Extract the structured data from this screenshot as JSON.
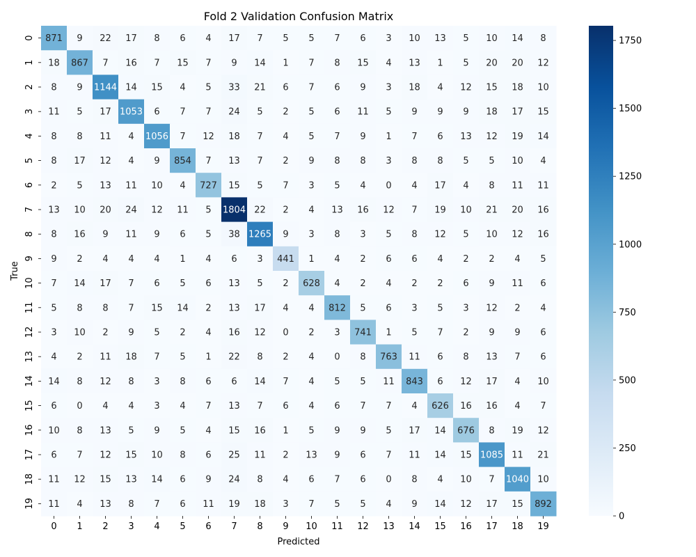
{
  "chart_data": {
    "type": "heatmap",
    "title": "Fold 2 Validation Confusion Matrix",
    "xlabel": "Predicted",
    "ylabel": "True",
    "x_labels": [
      "0",
      "1",
      "2",
      "3",
      "4",
      "5",
      "6",
      "7",
      "8",
      "9",
      "10",
      "11",
      "12",
      "13",
      "14",
      "15",
      "16",
      "17",
      "18",
      "19"
    ],
    "y_labels": [
      "0",
      "1",
      "2",
      "3",
      "4",
      "5",
      "6",
      "7",
      "8",
      "9",
      "10",
      "11",
      "12",
      "13",
      "14",
      "15",
      "16",
      "17",
      "18",
      "19"
    ],
    "values": [
      [
        871,
        9,
        22,
        17,
        8,
        6,
        4,
        17,
        7,
        5,
        5,
        7,
        6,
        3,
        10,
        13,
        5,
        10,
        14,
        8
      ],
      [
        18,
        867,
        7,
        16,
        7,
        15,
        7,
        9,
        14,
        1,
        7,
        8,
        15,
        4,
        13,
        1,
        5,
        20,
        20,
        12
      ],
      [
        8,
        9,
        1144,
        14,
        15,
        4,
        5,
        33,
        21,
        6,
        7,
        6,
        9,
        3,
        18,
        4,
        12,
        15,
        18,
        10
      ],
      [
        11,
        5,
        17,
        1053,
        6,
        7,
        7,
        24,
        5,
        2,
        5,
        6,
        11,
        5,
        9,
        9,
        9,
        18,
        17,
        15
      ],
      [
        8,
        8,
        11,
        4,
        1056,
        7,
        12,
        18,
        7,
        4,
        5,
        7,
        9,
        1,
        7,
        6,
        13,
        12,
        19,
        14
      ],
      [
        8,
        17,
        12,
        4,
        9,
        854,
        7,
        13,
        7,
        2,
        9,
        8,
        8,
        3,
        8,
        8,
        5,
        5,
        10,
        4
      ],
      [
        2,
        5,
        13,
        11,
        10,
        4,
        727,
        15,
        5,
        7,
        3,
        5,
        4,
        0,
        4,
        17,
        4,
        8,
        11,
        11
      ],
      [
        13,
        10,
        20,
        24,
        12,
        11,
        5,
        1804,
        22,
        2,
        4,
        13,
        16,
        12,
        7,
        19,
        10,
        21,
        20,
        16
      ],
      [
        8,
        16,
        9,
        11,
        9,
        6,
        5,
        38,
        1265,
        9,
        3,
        8,
        3,
        5,
        8,
        12,
        5,
        10,
        12,
        16
      ],
      [
        9,
        2,
        4,
        4,
        4,
        1,
        4,
        6,
        3,
        441,
        1,
        4,
        2,
        6,
        6,
        4,
        2,
        2,
        4,
        5
      ],
      [
        7,
        14,
        17,
        7,
        6,
        5,
        6,
        13,
        5,
        2,
        628,
        4,
        2,
        4,
        2,
        2,
        6,
        9,
        11,
        6
      ],
      [
        5,
        8,
        8,
        7,
        15,
        14,
        2,
        13,
        17,
        4,
        4,
        812,
        5,
        6,
        3,
        5,
        3,
        12,
        2,
        4
      ],
      [
        3,
        10,
        2,
        9,
        5,
        2,
        4,
        16,
        12,
        0,
        2,
        3,
        741,
        1,
        5,
        7,
        2,
        9,
        9,
        6
      ],
      [
        4,
        2,
        11,
        18,
        7,
        5,
        1,
        22,
        8,
        2,
        4,
        0,
        8,
        763,
        11,
        6,
        8,
        13,
        7,
        6
      ],
      [
        14,
        8,
        12,
        8,
        3,
        8,
        6,
        6,
        14,
        7,
        4,
        5,
        5,
        11,
        843,
        6,
        12,
        17,
        4,
        10
      ],
      [
        6,
        0,
        4,
        4,
        3,
        4,
        7,
        13,
        7,
        6,
        4,
        6,
        7,
        7,
        4,
        626,
        16,
        16,
        4,
        7
      ],
      [
        10,
        8,
        13,
        5,
        9,
        5,
        4,
        15,
        16,
        1,
        5,
        9,
        9,
        5,
        17,
        14,
        676,
        8,
        19,
        12
      ],
      [
        6,
        7,
        12,
        15,
        10,
        8,
        6,
        25,
        11,
        2,
        13,
        9,
        6,
        7,
        11,
        14,
        15,
        1085,
        11,
        21
      ],
      [
        11,
        12,
        15,
        13,
        14,
        6,
        9,
        24,
        8,
        4,
        6,
        7,
        6,
        0,
        8,
        4,
        10,
        7,
        1040,
        10
      ],
      [
        11,
        4,
        13,
        8,
        7,
        6,
        11,
        19,
        18,
        3,
        7,
        5,
        5,
        4,
        9,
        14,
        12,
        17,
        15,
        892
      ]
    ],
    "colormap": "Blues",
    "vmin": 0,
    "vmax": 1804,
    "colorbar_ticks": [
      "0",
      "250",
      "500",
      "750",
      "1000",
      "1250",
      "1500",
      "1750"
    ],
    "colorbar_values": [
      0,
      250,
      500,
      750,
      1000,
      1250,
      1500,
      1750
    ],
    "grid": false,
    "legend": "colorbar-right"
  }
}
